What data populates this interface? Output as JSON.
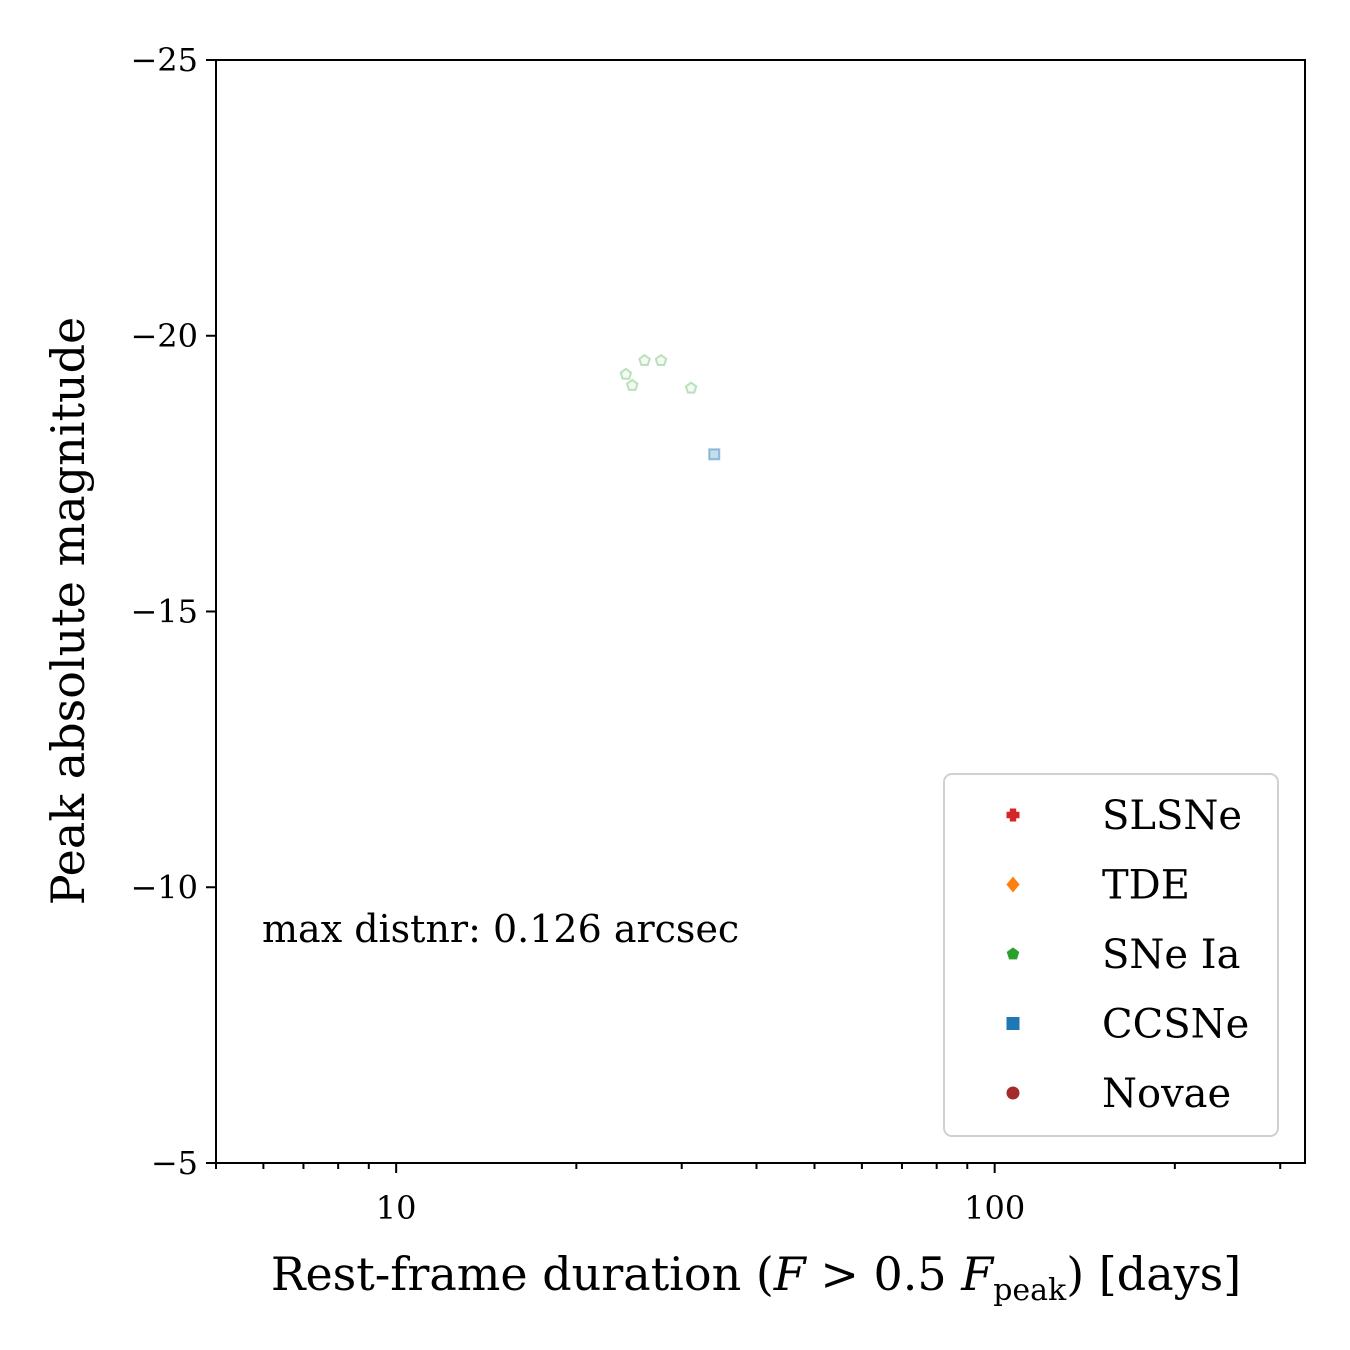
{
  "chart_data": {
    "type": "scatter",
    "xlabel": "Rest-frame duration (F > 0.5 F_peak) [days]",
    "xlabel_parts": {
      "main": "Rest-frame duration (",
      "F1": "F",
      "gt": " > 0.5 ",
      "F2": "F",
      "sub": "peak",
      "tail": ") [days]"
    },
    "ylabel": "Peak absolute magnitude",
    "xscale": "log",
    "xlim": [
      5,
      330
    ],
    "ylim": [
      -5,
      -25
    ],
    "y_inverted": true,
    "x_ticks": [
      10,
      100
    ],
    "x_tick_labels": [
      "10",
      "100"
    ],
    "y_ticks": [
      -25,
      -20,
      -15,
      -10,
      -5
    ],
    "y_tick_labels": [
      "−25",
      "−20",
      "−15",
      "−10",
      "−5"
    ],
    "annotation": "max distnr: 0.126 arcsec",
    "legend_position": "lower-right",
    "grid": false,
    "series": [
      {
        "name": "SLSNe",
        "color": "#d62728",
        "marker": "plus",
        "points": []
      },
      {
        "name": "TDE",
        "color": "#ff7f0e",
        "marker": "diamond",
        "points": []
      },
      {
        "name": "SNe Ia",
        "color": "#2ca02c",
        "marker": "pentagon",
        "points": [
          [
            24.2,
            -19.3
          ],
          [
            24.8,
            -19.1
          ],
          [
            26.0,
            -19.55
          ],
          [
            27.7,
            -19.55
          ],
          [
            31.1,
            -19.05
          ]
        ]
      },
      {
        "name": "CCSNe",
        "color": "#1f77b4",
        "marker": "square",
        "points": [
          [
            34.0,
            -17.85
          ]
        ]
      },
      {
        "name": "Novae",
        "color": "#a52a2a",
        "marker": "circle",
        "points": []
      }
    ]
  }
}
